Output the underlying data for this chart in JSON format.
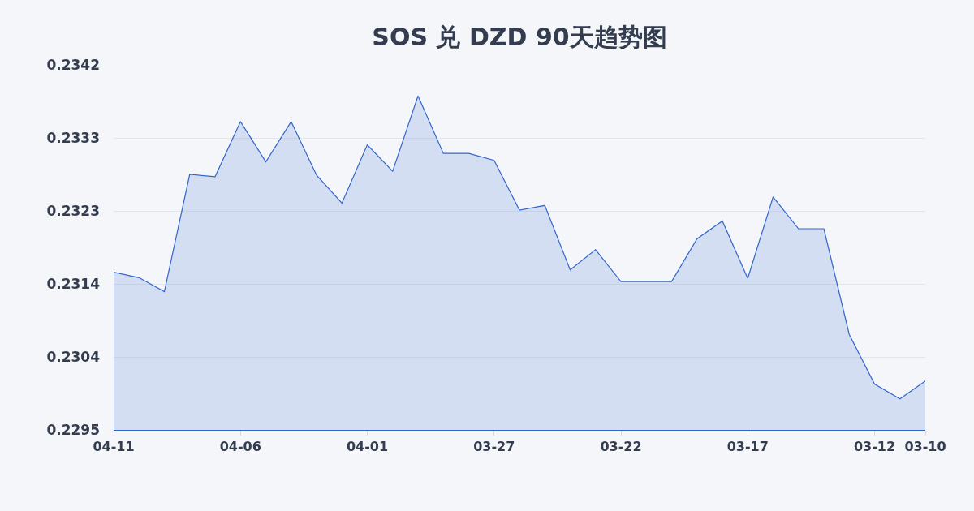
{
  "chart_data": {
    "type": "area",
    "title": "SOS 兑 DZD 90天趋势图",
    "categories": [
      "04-11",
      null,
      null,
      null,
      null,
      "04-06",
      null,
      null,
      null,
      null,
      "04-01",
      null,
      null,
      null,
      null,
      "03-27",
      null,
      null,
      null,
      null,
      "03-22",
      null,
      null,
      null,
      null,
      "03-17",
      null,
      null,
      null,
      null,
      "03-12",
      null,
      "03-10"
    ],
    "series": [
      {
        "color": "#3366cc",
        "values": [
          0.23153,
          0.23146,
          0.23128,
          0.23279,
          0.23276,
          0.23347,
          0.23295,
          0.23347,
          0.23278,
          0.23242,
          0.23317,
          0.23283,
          0.2338,
          0.23306,
          0.23306,
          0.23297,
          0.23233,
          0.23239,
          0.23156,
          0.23182,
          0.23141,
          0.23141,
          0.23141,
          0.23196,
          0.23219,
          0.23145,
          0.2325,
          0.23209,
          0.23209,
          0.23073,
          0.23009,
          0.2299,
          0.23013
        ]
      }
    ],
    "ylim": [
      0.2295,
      0.2342
    ],
    "yticks": [
      0.2295,
      {
        "value": 0.23044,
        "label": "0.2304"
      },
      {
        "value": 0.23138,
        "label": "0.2314"
      },
      {
        "value": 0.23232,
        "label": "0.2323"
      },
      {
        "value": 0.23326,
        "label": "0.2333"
      },
      0.2342
    ],
    "grid": "y"
  }
}
